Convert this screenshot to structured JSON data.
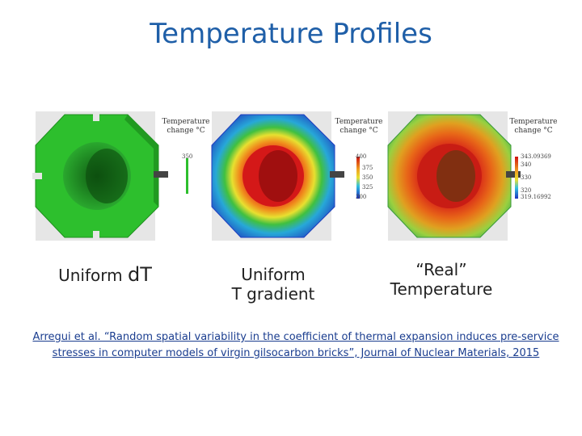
{
  "title": "Temperature Profiles",
  "panels": [
    {
      "legend_title_line1": "Temperature",
      "legend_title_line2": "change °C",
      "ticks": [
        "350"
      ],
      "caption_line1": "Uniform ",
      "caption_line1_b": "dT",
      "caption_line2": ""
    },
    {
      "legend_title_line1": "Temperature",
      "legend_title_line2": "change °C",
      "ticks": [
        "400",
        "375",
        "350",
        "325",
        "300"
      ],
      "caption_line1": "Uniform",
      "caption_line2": "T gradient"
    },
    {
      "legend_title_line1": "Temperature",
      "legend_title_line2": "change °C",
      "ticks": [
        "343.09369",
        "340",
        "330",
        "320",
        "319.16992"
      ],
      "caption_line1": "“Real”",
      "caption_line2": "Temperature"
    }
  ],
  "citation_line1": "Arregui et al. “Random spatial variability in the coefficient of thermal expansion induces pre-service",
  "citation_line2": "stresses in computer models of virgin gilsocarbon bricks”, Journal of Nuclear Materials, 2015",
  "colors": {
    "title": "#1f5fa8",
    "citation": "#1a3d8f"
  }
}
